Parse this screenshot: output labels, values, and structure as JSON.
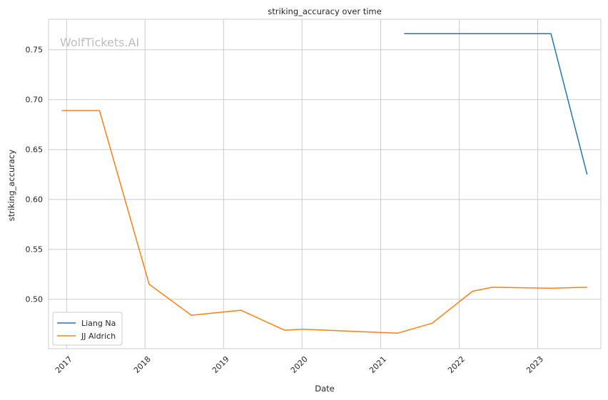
{
  "chart_data": {
    "type": "line",
    "title": "striking_accuracy over time",
    "xlabel": "Date",
    "ylabel": "striking_accuracy",
    "watermark": "WolfTickets.AI",
    "x_type": "date",
    "xlim": [
      "2016-10-09",
      "2023-10-22"
    ],
    "ylim": [
      0.4505,
      0.7805
    ],
    "x_ticks": [
      "2017-01-01",
      "2018-01-01",
      "2019-01-01",
      "2020-01-01",
      "2021-01-01",
      "2022-01-01",
      "2023-01-01"
    ],
    "x_tick_labels": [
      "2017",
      "2018",
      "2019",
      "2020",
      "2021",
      "2022",
      "2023"
    ],
    "y_ticks": [
      0.5,
      0.55,
      0.6,
      0.65,
      0.7,
      0.75
    ],
    "y_tick_labels": [
      "0.50",
      "0.55",
      "0.60",
      "0.65",
      "0.70",
      "0.75"
    ],
    "grid": true,
    "legend_position": "lower-left",
    "series": [
      {
        "name": "Liang Na",
        "color": "#1f77b4",
        "x": [
          "2021-04-20",
          "2023-03-04",
          "2023-08-19"
        ],
        "y": [
          0.766,
          0.766,
          0.625
        ]
      },
      {
        "name": "JJ Aldrich",
        "color": "#ff7f0e",
        "x": [
          "2016-12-10",
          "2017-06-03",
          "2018-01-20",
          "2018-08-04",
          "2019-03-23",
          "2019-10-12",
          "2020-01-04",
          "2021-03-20",
          "2021-08-28",
          "2022-03-04",
          "2022-06-04",
          "2023-03-04",
          "2023-08-19"
        ],
        "y": [
          0.689,
          0.689,
          0.515,
          0.484,
          0.489,
          0.469,
          0.47,
          0.466,
          0.476,
          0.508,
          0.512,
          0.511,
          0.512
        ]
      }
    ]
  }
}
